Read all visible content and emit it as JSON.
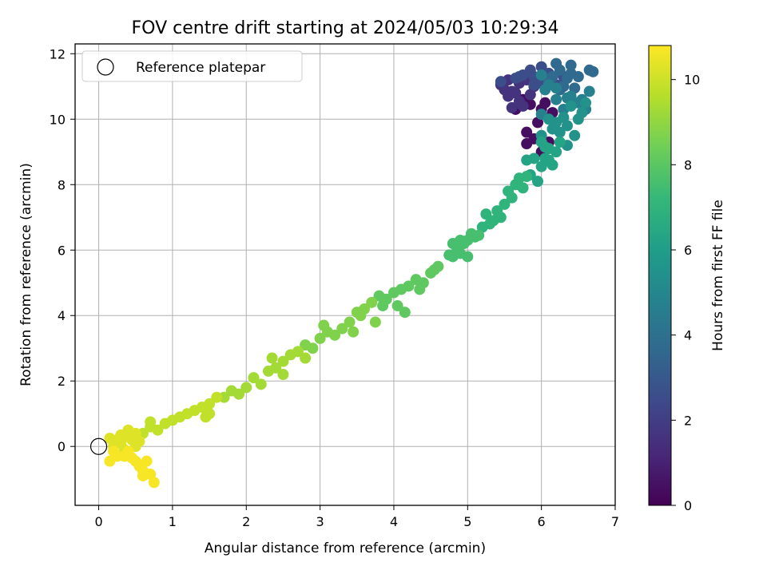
{
  "chart_data": {
    "type": "scatter",
    "title": "FOV centre drift starting at 2024/05/03 10:29:34",
    "xlabel": "Angular distance from reference (arcmin)",
    "ylabel": "Rotation from reference (arcmin)",
    "xlim": [
      -0.32,
      7.0
    ],
    "ylim": [
      -1.8,
      12.3
    ],
    "xticks": [
      "0",
      "1",
      "2",
      "3",
      "4",
      "5",
      "6",
      "7"
    ],
    "yticks": [
      "0",
      "2",
      "4",
      "6",
      "8",
      "10",
      "12"
    ],
    "grid": true,
    "legend": {
      "position": "top-left",
      "entries": [
        "Reference platepar"
      ]
    },
    "reference_point": {
      "x": 0,
      "y": 0
    },
    "colorbar": {
      "label": "Hours from first FF file",
      "range": [
        0,
        10.8
      ],
      "ticks": [
        "0",
        "2",
        "4",
        "6",
        "8",
        "10"
      ],
      "colormap": "viridis",
      "colors": [
        "#440154",
        "#482878",
        "#3e4989",
        "#31688e",
        "#26828e",
        "#1f9e89",
        "#35b779",
        "#6ece58",
        "#b5de2b",
        "#fde725"
      ]
    },
    "series": [
      {
        "t": 0.4,
        "points": [
          [
            5.8,
            9.6
          ],
          [
            5.8,
            9.25
          ],
          [
            5.9,
            9.4
          ],
          [
            6.0,
            9.0
          ],
          [
            6.1,
            9.3
          ],
          [
            5.95,
            9.9
          ],
          [
            6.0,
            10.3
          ],
          [
            5.75,
            10.6
          ],
          [
            5.85,
            10.45
          ],
          [
            6.15,
            10.2
          ],
          [
            6.05,
            10.5
          ],
          [
            5.65,
            10.3
          ]
        ]
      },
      {
        "t": 1.6,
        "points": [
          [
            5.45,
            11.05
          ],
          [
            5.5,
            10.9
          ],
          [
            5.55,
            10.7
          ],
          [
            5.6,
            10.85
          ],
          [
            5.7,
            11.1
          ],
          [
            5.55,
            11.2
          ],
          [
            5.65,
            10.8
          ],
          [
            5.85,
            10.75
          ],
          [
            5.75,
            10.4
          ],
          [
            5.6,
            10.35
          ],
          [
            5.9,
            11.0
          ],
          [
            5.8,
            11.2
          ],
          [
            5.7,
            10.55
          ]
        ]
      },
      {
        "t": 2.6,
        "points": [
          [
            5.45,
            11.15
          ],
          [
            5.7,
            11.3
          ],
          [
            5.9,
            11.3
          ],
          [
            6.05,
            11.2
          ],
          [
            6.2,
            11.05
          ],
          [
            6.1,
            11.4
          ],
          [
            5.85,
            11.5
          ],
          [
            5.75,
            11.35
          ],
          [
            5.95,
            11.1
          ],
          [
            6.3,
            11.3
          ],
          [
            5.65,
            11.25
          ],
          [
            6.0,
            11.6
          ],
          [
            5.9,
            11.05
          ]
        ]
      },
      {
        "t": 3.7,
        "points": [
          [
            6.2,
            11.7
          ],
          [
            6.25,
            11.5
          ],
          [
            6.4,
            11.4
          ],
          [
            6.35,
            11.25
          ],
          [
            6.5,
            11.3
          ],
          [
            6.1,
            11.2
          ],
          [
            6.25,
            10.9
          ],
          [
            6.4,
            11.65
          ],
          [
            6.7,
            11.45
          ],
          [
            6.3,
            11.0
          ],
          [
            6.15,
            11.3
          ],
          [
            6.45,
            10.95
          ],
          [
            6.65,
            11.5
          ]
        ]
      },
      {
        "t": 4.7,
        "points": [
          [
            6.0,
            11.35
          ],
          [
            6.05,
            10.9
          ],
          [
            6.2,
            10.6
          ],
          [
            6.3,
            10.3
          ],
          [
            6.1,
            11.05
          ],
          [
            6.0,
            10.15
          ],
          [
            6.4,
            10.7
          ],
          [
            6.5,
            10.5
          ],
          [
            6.6,
            10.3
          ],
          [
            6.65,
            10.85
          ],
          [
            6.55,
            10.6
          ],
          [
            6.2,
            10.95
          ],
          [
            6.35,
            10.65
          ]
        ]
      },
      {
        "t": 5.5,
        "points": [
          [
            6.4,
            10.4
          ],
          [
            6.5,
            10.0
          ],
          [
            6.35,
            9.8
          ],
          [
            6.25,
            9.6
          ],
          [
            6.45,
            9.5
          ],
          [
            6.55,
            10.2
          ],
          [
            6.3,
            10.05
          ],
          [
            6.15,
            9.7
          ],
          [
            6.0,
            9.5
          ],
          [
            6.2,
            9.9
          ],
          [
            6.35,
            9.2
          ],
          [
            6.6,
            10.5
          ],
          [
            6.1,
            10.0
          ]
        ]
      },
      {
        "t": 6.3,
        "points": [
          [
            6.0,
            9.3
          ],
          [
            6.1,
            9.1
          ],
          [
            6.2,
            9.0
          ],
          [
            6.05,
            8.8
          ],
          [
            6.0,
            8.55
          ],
          [
            6.15,
            8.6
          ],
          [
            5.9,
            8.8
          ],
          [
            5.85,
            8.3
          ],
          [
            5.95,
            8.1
          ],
          [
            6.05,
            9.15
          ],
          [
            6.25,
            9.3
          ],
          [
            5.8,
            8.75
          ],
          [
            6.1,
            8.75
          ]
        ]
      },
      {
        "t": 7.0,
        "points": [
          [
            5.65,
            8.0
          ],
          [
            5.7,
            8.2
          ],
          [
            5.75,
            7.9
          ],
          [
            5.8,
            8.25
          ],
          [
            5.55,
            7.8
          ],
          [
            5.6,
            7.6
          ],
          [
            5.5,
            7.4
          ],
          [
            5.4,
            7.2
          ],
          [
            5.45,
            7.0
          ],
          [
            5.3,
            6.8
          ],
          [
            5.25,
            7.1
          ],
          [
            5.2,
            6.7
          ],
          [
            5.35,
            6.9
          ]
        ]
      },
      {
        "t": 7.6,
        "points": [
          [
            5.1,
            6.4
          ],
          [
            5.0,
            6.3
          ],
          [
            4.9,
            6.3
          ],
          [
            4.85,
            6.1
          ],
          [
            4.8,
            5.8
          ],
          [
            4.9,
            5.9
          ],
          [
            5.0,
            5.8
          ],
          [
            4.95,
            6.2
          ],
          [
            5.15,
            6.45
          ],
          [
            4.75,
            5.85
          ],
          [
            5.05,
            6.5
          ],
          [
            4.8,
            6.2
          ]
        ]
      },
      {
        "t": 8.1,
        "points": [
          [
            4.6,
            5.5
          ],
          [
            4.5,
            5.3
          ],
          [
            4.4,
            5.0
          ],
          [
            4.3,
            5.1
          ],
          [
            4.2,
            4.9
          ],
          [
            4.1,
            4.8
          ],
          [
            4.0,
            4.7
          ],
          [
            3.9,
            4.5
          ],
          [
            3.8,
            4.6
          ],
          [
            4.05,
            4.3
          ],
          [
            4.15,
            4.1
          ],
          [
            3.85,
            4.3
          ],
          [
            4.35,
            4.8
          ],
          [
            4.55,
            5.4
          ]
        ]
      },
      {
        "t": 8.7,
        "points": [
          [
            3.7,
            4.4
          ],
          [
            3.6,
            4.2
          ],
          [
            3.5,
            4.1
          ],
          [
            3.4,
            3.8
          ],
          [
            3.3,
            3.6
          ],
          [
            3.2,
            3.4
          ],
          [
            3.1,
            3.5
          ],
          [
            3.0,
            3.3
          ],
          [
            3.05,
            3.7
          ],
          [
            2.9,
            3.0
          ],
          [
            2.8,
            3.1
          ],
          [
            3.55,
            4.0
          ],
          [
            3.75,
            3.8
          ],
          [
            3.45,
            3.5
          ]
        ]
      },
      {
        "t": 9.3,
        "points": [
          [
            2.7,
            2.9
          ],
          [
            2.6,
            2.8
          ],
          [
            2.5,
            2.6
          ],
          [
            2.4,
            2.4
          ],
          [
            2.3,
            2.3
          ],
          [
            2.2,
            1.9
          ],
          [
            2.1,
            2.1
          ],
          [
            2.0,
            1.8
          ],
          [
            1.9,
            1.6
          ],
          [
            1.8,
            1.7
          ],
          [
            1.7,
            1.5
          ],
          [
            2.35,
            2.7
          ],
          [
            2.8,
            2.7
          ],
          [
            2.5,
            2.2
          ]
        ]
      },
      {
        "t": 9.8,
        "points": [
          [
            1.6,
            1.5
          ],
          [
            1.5,
            1.3
          ],
          [
            1.4,
            1.2
          ],
          [
            1.3,
            1.1
          ],
          [
            1.2,
            1.0
          ],
          [
            1.1,
            0.9
          ],
          [
            1.0,
            0.8
          ],
          [
            0.9,
            0.7
          ],
          [
            0.8,
            0.5
          ],
          [
            0.7,
            0.6
          ],
          [
            0.6,
            0.4
          ],
          [
            1.5,
            1.0
          ],
          [
            0.7,
            0.75
          ],
          [
            1.45,
            0.9
          ]
        ]
      },
      {
        "t": 10.3,
        "points": [
          [
            0.5,
            0.4
          ],
          [
            0.45,
            0.2
          ],
          [
            0.4,
            0.5
          ],
          [
            0.35,
            0.3
          ],
          [
            0.3,
            0.1
          ],
          [
            0.25,
            0.2
          ],
          [
            0.2,
            0.0
          ],
          [
            0.15,
            0.25
          ],
          [
            0.5,
            0.0
          ],
          [
            0.55,
            0.15
          ],
          [
            0.35,
            -0.1
          ],
          [
            0.3,
            0.35
          ]
        ]
      },
      {
        "t": 10.7,
        "points": [
          [
            0.2,
            -0.15
          ],
          [
            0.25,
            -0.3
          ],
          [
            0.35,
            -0.3
          ],
          [
            0.45,
            -0.35
          ],
          [
            0.5,
            -0.45
          ],
          [
            0.55,
            -0.6
          ],
          [
            0.6,
            -0.75
          ],
          [
            0.7,
            -0.85
          ],
          [
            0.75,
            -1.1
          ],
          [
            0.65,
            -0.45
          ],
          [
            0.15,
            -0.45
          ],
          [
            0.4,
            -0.15
          ],
          [
            0.6,
            -0.9
          ]
        ]
      }
    ]
  }
}
